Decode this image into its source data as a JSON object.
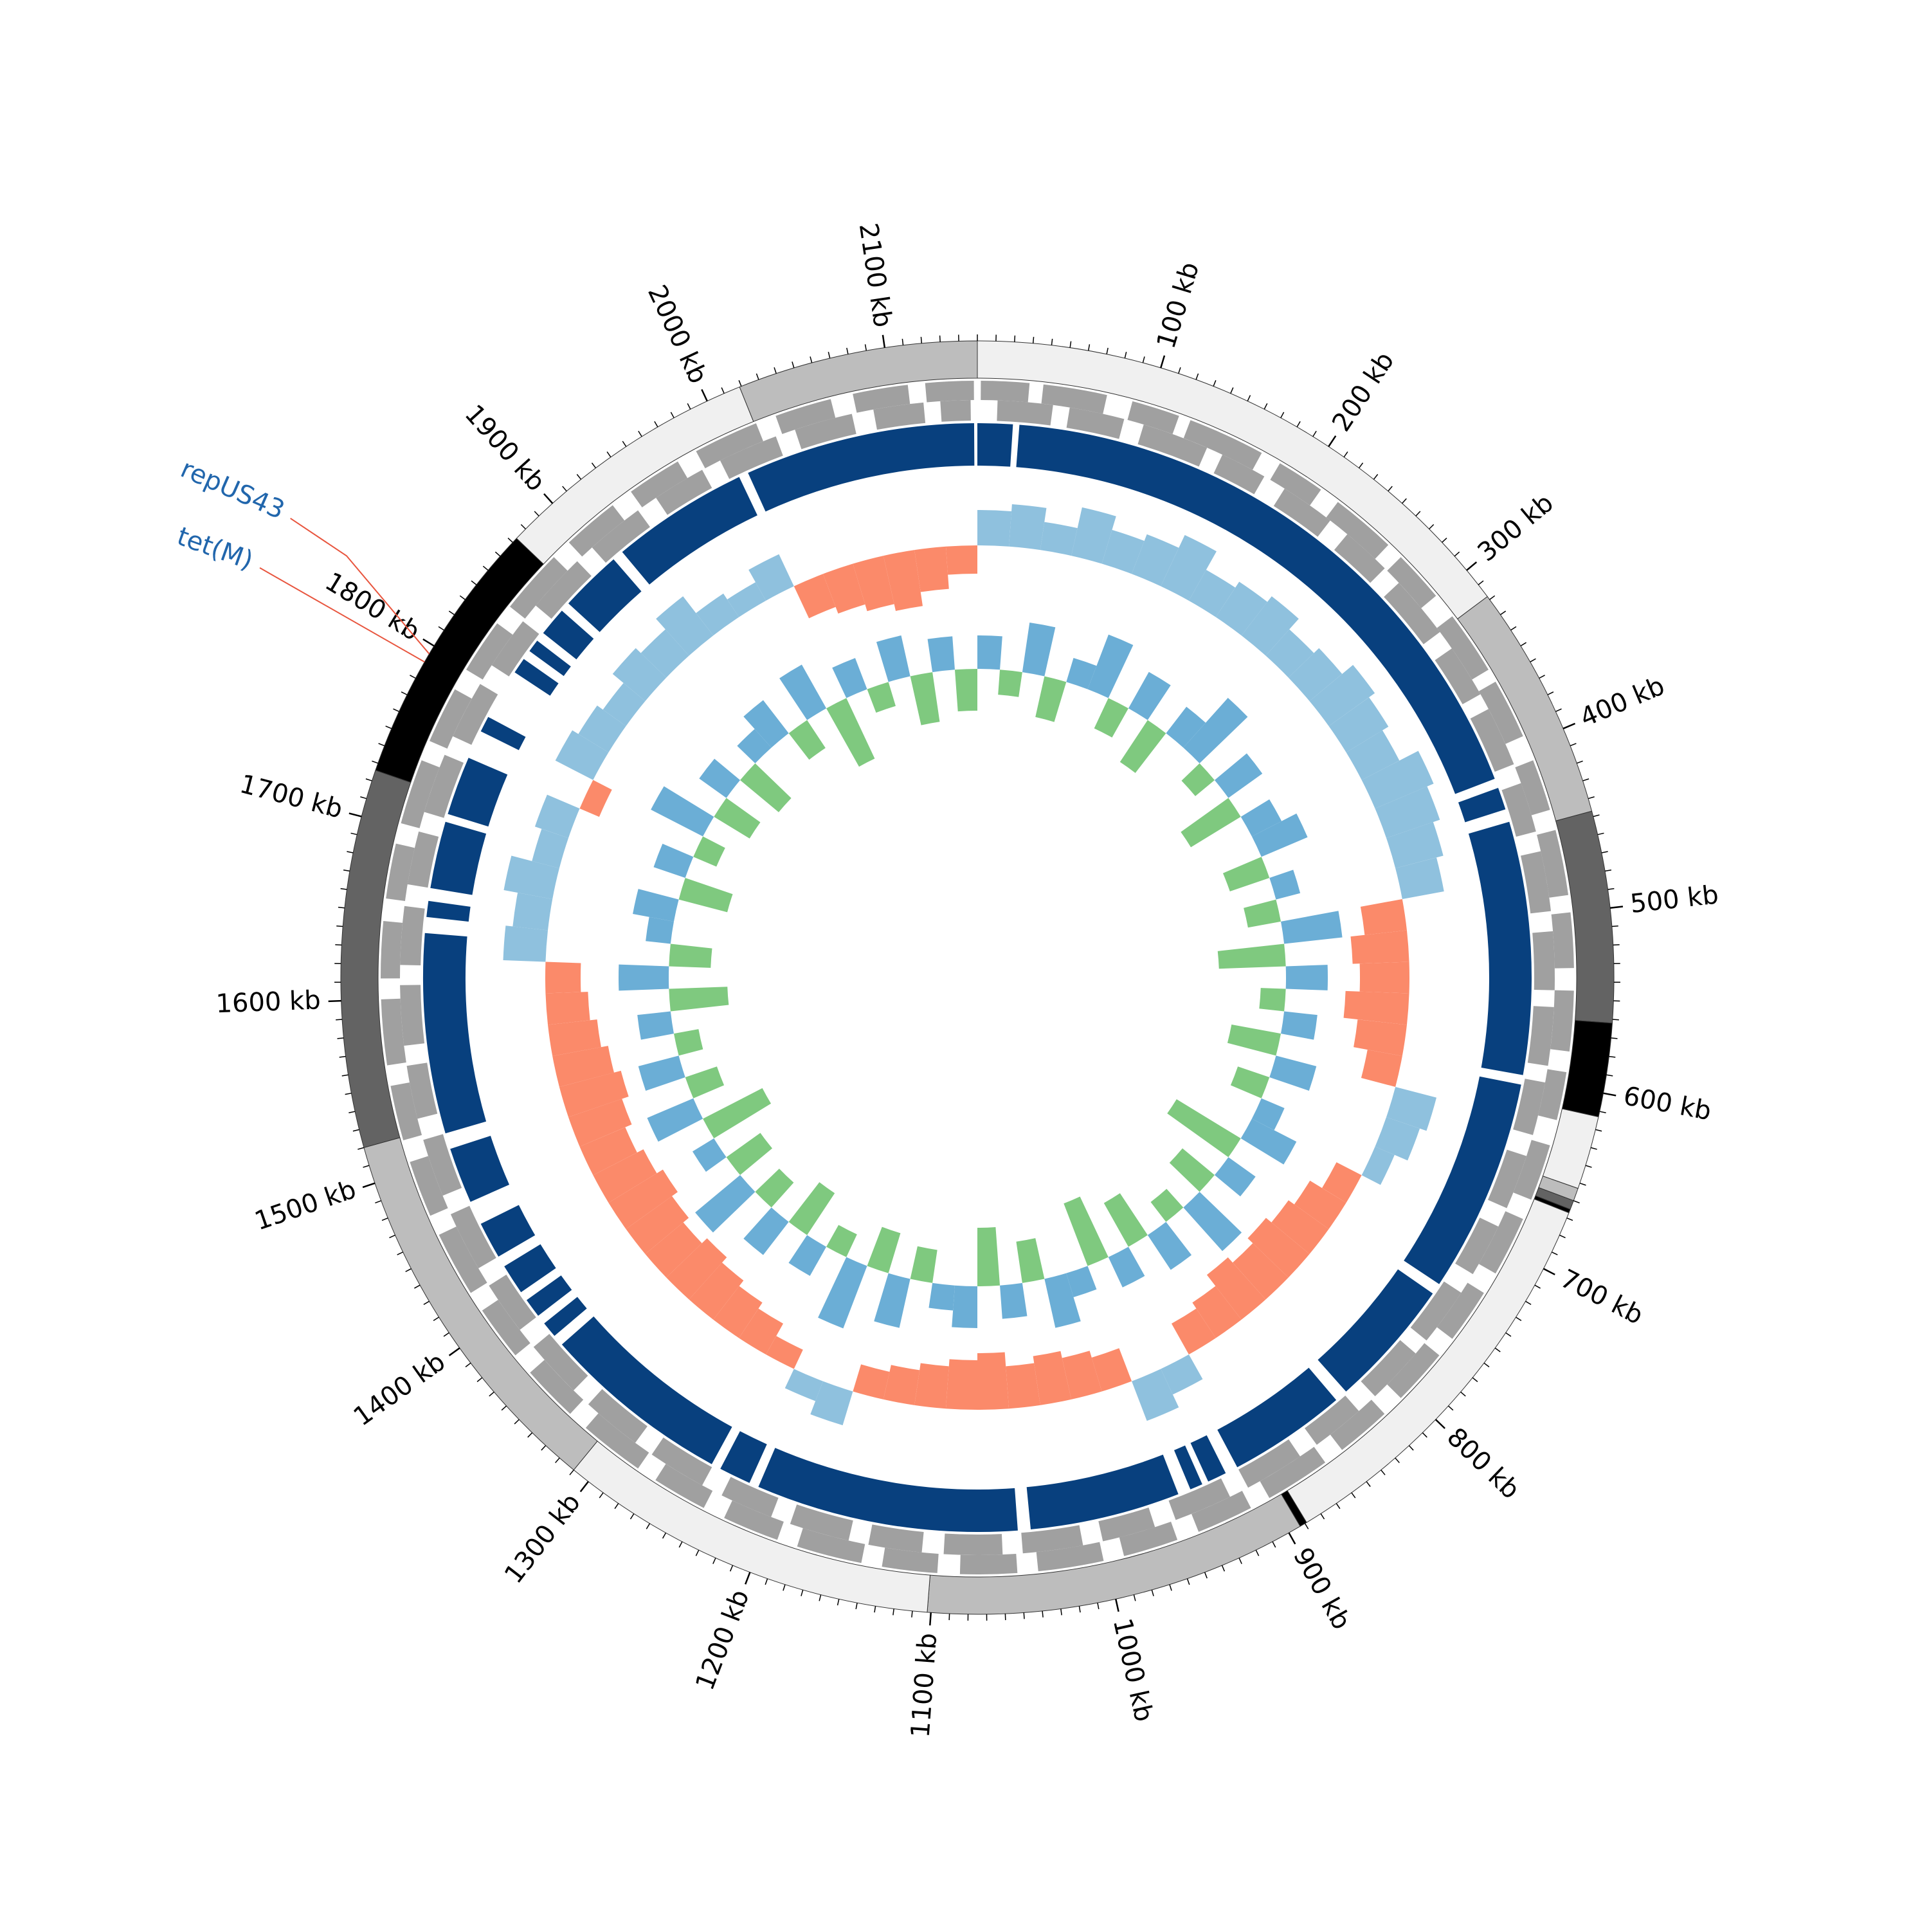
{
  "chart_data": {
    "type": "circular-genome",
    "genome_length": 2150,
    "ticks": [
      {
        "value": 100,
        "label": "100 kb"
      },
      {
        "value": 200,
        "label": "200 kb"
      },
      {
        "value": 300,
        "label": "300 kb"
      },
      {
        "value": 400,
        "label": "400 kb"
      },
      {
        "value": 500,
        "label": "500 kb"
      },
      {
        "value": 600,
        "label": "600 kb"
      },
      {
        "value": 700,
        "label": "700 kb"
      },
      {
        "value": 800,
        "label": "800 kb"
      },
      {
        "value": 900,
        "label": "900 kb"
      },
      {
        "value": 1000,
        "label": "1000 kb"
      },
      {
        "value": 1100,
        "label": "1100 kb"
      },
      {
        "value": 1200,
        "label": "1200 kb"
      },
      {
        "value": 1300,
        "label": "1300 kb"
      },
      {
        "value": 1400,
        "label": "1400 kb"
      },
      {
        "value": 1500,
        "label": "1500 kb"
      },
      {
        "value": 1600,
        "label": "1600 kb"
      },
      {
        "value": 1700,
        "label": "1700 kb"
      },
      {
        "value": 1800,
        "label": "1800 kb"
      },
      {
        "value": 1900,
        "label": "1900 kb"
      },
      {
        "value": 2000,
        "label": "2000 kb"
      },
      {
        "value": 2100,
        "label": "2100 kb"
      }
    ],
    "minor_tick_step": 10,
    "contigs": [
      {
        "start": 0,
        "end": 318,
        "color": "#f0f0f0"
      },
      {
        "start": 318,
        "end": 447,
        "color": "#bdbdbd"
      },
      {
        "start": 447,
        "end": 562,
        "color": "#636363"
      },
      {
        "start": 562,
        "end": 613,
        "color": "#000000"
      },
      {
        "start": 613,
        "end": 653,
        "color": "#f0f0f0"
      },
      {
        "start": 653,
        "end": 660,
        "color": "#bdbdbd"
      },
      {
        "start": 660,
        "end": 665,
        "color": "#636363"
      },
      {
        "start": 665,
        "end": 667,
        "color": "#000000"
      },
      {
        "start": 667,
        "end": 889,
        "color": "#f0f0f0"
      },
      {
        "start": 889,
        "end": 893,
        "color": "#000000"
      },
      {
        "start": 893,
        "end": 1102,
        "color": "#bdbdbd"
      },
      {
        "start": 1102,
        "end": 1310,
        "color": "#f0f0f0"
      },
      {
        "start": 1310,
        "end": 1520,
        "color": "#bdbdbd"
      },
      {
        "start": 1520,
        "end": 1726,
        "color": "#636363"
      },
      {
        "start": 1726,
        "end": 1873,
        "color": "#000000"
      },
      {
        "start": 1873,
        "end": 2019,
        "color": "#f0f0f0"
      },
      {
        "start": 2019,
        "end": 2150,
        "color": "#bdbdbd"
      }
    ],
    "gene_color": "#a0a0a0",
    "genes": {
      "forward": [
        [
          2,
          30
        ],
        [
          38,
          75
        ],
        [
          90,
          118
        ],
        [
          125,
          170
        ],
        [
          182,
          210
        ],
        [
          222,
          260
        ],
        [
          270,
          300
        ],
        [
          315,
          352
        ],
        [
          360,
          395
        ],
        [
          410,
          440
        ],
        [
          452,
          490
        ],
        [
          500,
          532
        ],
        [
          545,
          580
        ],
        [
          592,
          620
        ],
        [
          635,
          668
        ],
        [
          680,
          715
        ],
        [
          728,
          760
        ],
        [
          772,
          805
        ],
        [
          818,
          850
        ],
        [
          862,
          900
        ],
        [
          912,
          945
        ],
        [
          958,
          990
        ],
        [
          1002,
          1040
        ],
        [
          1052,
          1085
        ],
        [
          1098,
          1130
        ],
        [
          1142,
          1180
        ],
        [
          1192,
          1225
        ],
        [
          1238,
          1270
        ],
        [
          1282,
          1320
        ],
        [
          1332,
          1365
        ],
        [
          1378,
          1410
        ],
        [
          1422,
          1460
        ],
        [
          1472,
          1505
        ],
        [
          1518,
          1550
        ],
        [
          1562,
          1600
        ],
        [
          1612,
          1645
        ],
        [
          1658,
          1690
        ],
        [
          1702,
          1740
        ],
        [
          1752,
          1785
        ],
        [
          1798,
          1830
        ],
        [
          1842,
          1880
        ],
        [
          1892,
          1925
        ],
        [
          1938,
          1970
        ],
        [
          1982,
          2020
        ],
        [
          2032,
          2065
        ],
        [
          2078,
          2110
        ],
        [
          2120,
          2148
        ]
      ],
      "reverse": [
        [
          12,
          45
        ],
        [
          55,
          88
        ],
        [
          100,
          140
        ],
        [
          150,
          178
        ],
        [
          192,
          225
        ],
        [
          238,
          268
        ],
        [
          280,
          318
        ],
        [
          330,
          362
        ],
        [
          372,
          408
        ],
        [
          420,
          450
        ],
        [
          462,
          498
        ],
        [
          510,
          545
        ],
        [
          555,
          590
        ],
        [
          600,
          632
        ],
        [
          645,
          678
        ],
        [
          690,
          722
        ],
        [
          735,
          770
        ],
        [
          780,
          815
        ],
        [
          828,
          860
        ],
        [
          872,
          908
        ],
        [
          920,
          955
        ],
        [
          968,
          1000
        ],
        [
          1012,
          1048
        ],
        [
          1060,
          1095
        ],
        [
          1108,
          1140
        ],
        [
          1152,
          1188
        ],
        [
          1200,
          1232
        ],
        [
          1245,
          1280
        ],
        [
          1292,
          1328
        ],
        [
          1340,
          1375
        ],
        [
          1388,
          1420
        ],
        [
          1432,
          1468
        ],
        [
          1480,
          1515
        ],
        [
          1528,
          1560
        ],
        [
          1572,
          1608
        ],
        [
          1620,
          1655
        ],
        [
          1668,
          1700
        ],
        [
          1712,
          1748
        ],
        [
          1760,
          1795
        ],
        [
          1808,
          1840
        ],
        [
          1852,
          1888
        ],
        [
          1900,
          1935
        ],
        [
          1948,
          1980
        ],
        [
          1992,
          2028
        ],
        [
          2040,
          2075
        ],
        [
          2088,
          2118
        ],
        [
          2128,
          2146
        ]
      ]
    },
    "homology_color": "#08407e",
    "homology_segments": [
      [
        0,
        22
      ],
      [
        26,
        412
      ],
      [
        418,
        432
      ],
      [
        440,
        598
      ],
      [
        604,
        738
      ],
      [
        745,
        826
      ],
      [
        834,
        908
      ],
      [
        916,
        928
      ],
      [
        932,
        940
      ],
      [
        948,
        1042
      ],
      [
        1050,
        1214
      ],
      [
        1220,
        1240
      ],
      [
        1246,
        1365
      ],
      [
        1372,
        1382
      ],
      [
        1388,
        1400
      ],
      [
        1406,
        1425
      ],
      [
        1432,
        1455
      ],
      [
        1470,
        1505
      ],
      [
        1515,
        1640
      ],
      [
        1650,
        1660
      ],
      [
        1668,
        1710
      ],
      [
        1715,
        1752
      ],
      [
        1770,
        1780
      ],
      [
        1812,
        1822
      ],
      [
        1828,
        1836
      ],
      [
        1842,
        1860
      ],
      [
        1866,
        1905
      ],
      [
        1912,
        1998
      ],
      [
        2004,
        2148
      ]
    ],
    "bin_size": 25,
    "gc_content": {
      "positive_color": "#8fc1de",
      "negative_color": "#fb8a6a",
      "ylim": [
        -1,
        1
      ],
      "values": [
        0.5,
        0.6,
        0.4,
        0.7,
        0.5,
        0.6,
        0.8,
        0.5,
        0.6,
        0.7,
        0.5,
        0.6,
        0.8,
        0.7,
        0.6,
        0.9,
        0.8,
        0.7,
        0.6,
        -0.6,
        -0.8,
        -0.7,
        -0.9,
        -0.7,
        -0.5,
        0.6,
        0.5,
        0.3,
        -0.4,
        -0.6,
        -0.7,
        -0.8,
        -0.7,
        -0.8,
        -0.6,
        -0.5,
        0.4,
        0.6,
        -0.5,
        -0.6,
        -0.7,
        -0.6,
        -0.8,
        -0.7,
        -0.6,
        -0.5,
        -0.4,
        0.5,
        0.3,
        -0.3,
        -0.5,
        -0.6,
        -0.7,
        -0.8,
        -0.7,
        -0.8,
        -0.9,
        -0.8,
        -0.7,
        -0.8,
        -0.9,
        -0.8,
        -0.7,
        -0.6,
        -0.5,
        0.6,
        0.5,
        0.7,
        0.4,
        0.5,
        -0.3,
        0.6,
        0.5,
        0.4,
        0.6,
        0.5,
        0.7,
        0.4,
        0.3,
        0.5,
        -0.5,
        -0.6,
        -0.7,
        -0.8,
        -0.6,
        -0.4
      ]
    },
    "gc_skew": {
      "positive_color": "#6baed6",
      "negative_color": "#7fc97f",
      "ylim": [
        -1,
        1
      ],
      "values": [
        0.4,
        -0.3,
        0.6,
        -0.5,
        0.3,
        0.7,
        -0.4,
        0.5,
        -0.6,
        0.4,
        0.8,
        -0.3,
        0.5,
        -0.7,
        0.4,
        0.6,
        -0.5,
        0.3,
        -0.4,
        0.7,
        -0.8,
        0.5,
        -0.3,
        0.4,
        -0.6,
        0.5,
        -0.4,
        0.3,
        0.6,
        -0.9,
        0.4,
        -0.5,
        0.7,
        -0.3,
        0.5,
        -0.6,
        0.4,
        -0.8,
        0.3,
        0.6,
        -0.5,
        0.4,
        -0.7,
        0.5,
        0.3,
        -0.4,
        0.6,
        -0.5,
        0.8,
        -0.3,
        0.4,
        -0.6,
        0.5,
        -0.4,
        0.7,
        -0.5,
        0.3,
        -0.8,
        0.6,
        -0.4,
        0.5,
        -0.3,
        0.4,
        -0.7,
        0.6,
        -0.5,
        0.3,
        0.5,
        -0.6,
        0.4,
        -0.3,
        0.7,
        -0.5,
        0.4,
        -0.6,
        0.3,
        0.5,
        -0.4,
        0.6,
        -0.8,
        0.4,
        -0.3,
        0.5,
        -0.6,
        0.4,
        -0.5
      ]
    },
    "annotation_color": "#2166ac",
    "annotation_line_color": "#e8553e",
    "annotations": [
      {
        "label": "repUS43",
        "position": 1795
      },
      {
        "label": "tet(M)",
        "position": 1790
      }
    ]
  }
}
